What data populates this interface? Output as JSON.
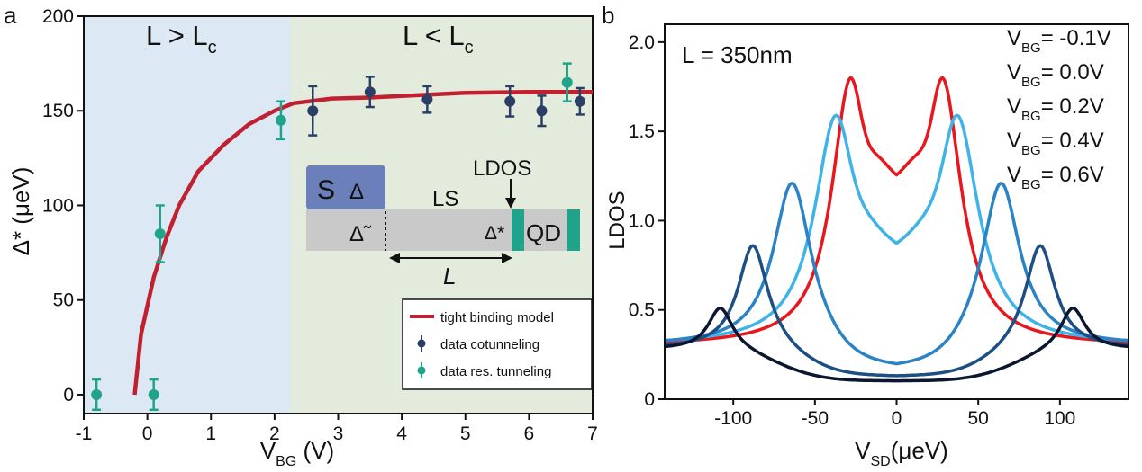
{
  "panels": {
    "a": "a",
    "b": "b"
  },
  "chart_data": [
    {
      "type": "scatter",
      "panel": "a",
      "xlabel_main": "V",
      "xlabel_sub": "BG",
      "xlabel_unit": " (V)",
      "ylabel": "Δ* (μeV)",
      "xlim": [
        -1,
        7
      ],
      "ylim": [
        -10,
        200
      ],
      "xticks": [
        -1,
        0,
        1,
        2,
        3,
        4,
        5,
        6,
        7
      ],
      "yticks": [
        0,
        50,
        100,
        150,
        200
      ],
      "regions": [
        {
          "label_main": "L > L",
          "label_sub": "c",
          "x_range": [
            -1,
            2.25
          ],
          "color": "#dce9f4"
        },
        {
          "label_main": "L < L",
          "label_sub": "c",
          "x_range": [
            2.25,
            7
          ],
          "color": "#e3ecdc"
        }
      ],
      "series": [
        {
          "name": "tight binding model",
          "type": "line",
          "color": "#c0202f",
          "x": [
            -0.2,
            -0.1,
            0.1,
            0.3,
            0.5,
            0.8,
            1.2,
            1.6,
            2.0,
            2.3,
            2.9,
            3.5,
            5.0,
            6.0,
            7.0
          ],
          "y": [
            0,
            32,
            62,
            83,
            100,
            118,
            132,
            143,
            150,
            154,
            156.5,
            157,
            159.5,
            160,
            160
          ]
        },
        {
          "name": "data cotunneling",
          "type": "errorbar",
          "color": "#2b3e66",
          "x": [
            2.6,
            3.5,
            4.4,
            5.7,
            6.2,
            6.8
          ],
          "y": [
            150,
            160,
            156,
            155,
            150,
            155
          ],
          "err": [
            13,
            8,
            7,
            8,
            8,
            7
          ]
        },
        {
          "name": "data res. tunneling",
          "type": "errorbar",
          "color": "#1fa38a",
          "x": [
            -0.8,
            0.1,
            0.2,
            2.1,
            6.6
          ],
          "y": [
            0,
            0,
            85,
            145,
            165
          ],
          "err": [
            8,
            8,
            15,
            10,
            10
          ]
        }
      ],
      "inset": {
        "s_label": "S",
        "delta_label": "Δ",
        "delta_tilde_label": "Δ̃",
        "ls_label": "LS",
        "ldos_label": "LDOS",
        "delta_star_label": "Δ*",
        "qd_label": "QD",
        "length_label": "L",
        "colors": {
          "s_block": "#6b7fba",
          "wire": "#c9c9c9",
          "marker": "#1fa38a"
        }
      },
      "legend_position": "bottom-right"
    },
    {
      "type": "line",
      "panel": "b",
      "xlabel_main": "V",
      "xlabel_sub": "SD",
      "xlabel_unit": "(μeV)",
      "ylabel": "LDOS",
      "xlim": [
        -142,
        142
      ],
      "ylim": [
        0,
        2.1
      ],
      "xticks": [
        -100,
        -50,
        0,
        50,
        100
      ],
      "yticks": [
        0,
        0.5,
        1.0,
        1.5,
        2.0
      ],
      "ytick_labels": [
        "0",
        "0.5",
        "1.0",
        "1.5",
        "2.0"
      ],
      "annotation": "L = 350nm",
      "series": [
        {
          "name_main": "V",
          "name_sub": "BG",
          "name_rest": "= -0.1V",
          "color": "#e8161d",
          "params": {
            "base": 0.3,
            "peak": 1.8,
            "pos": 28,
            "width": 14,
            "center": 1.12
          }
        },
        {
          "name_main": "V",
          "name_sub": "BG",
          "name_rest": "= 0.0V",
          "color": "#3fb3e8",
          "params": {
            "base": 0.3,
            "peak": 1.59,
            "pos": 37,
            "width": 16,
            "center": 0.74
          }
        },
        {
          "name_main": "V",
          "name_sub": "BG",
          "name_rest": "= 0.2V",
          "color": "#2b83c6",
          "params": {
            "base": 0.3,
            "peak": 1.21,
            "pos": 64,
            "width": 14,
            "center": 0.15
          }
        },
        {
          "name_main": "V",
          "name_sub": "BG",
          "name_rest": "= 0.4V",
          "color": "#1d4f85",
          "params": {
            "base": 0.28,
            "peak": 0.86,
            "pos": 88,
            "width": 11,
            "center": 0.12
          }
        },
        {
          "name_main": "V",
          "name_sub": "BG",
          "name_rest": "= 0.6V",
          "color": "#0d1630",
          "params": {
            "base": 0.28,
            "peak": 0.51,
            "pos": 108,
            "width": 9,
            "center": 0.1
          }
        }
      ]
    }
  ]
}
